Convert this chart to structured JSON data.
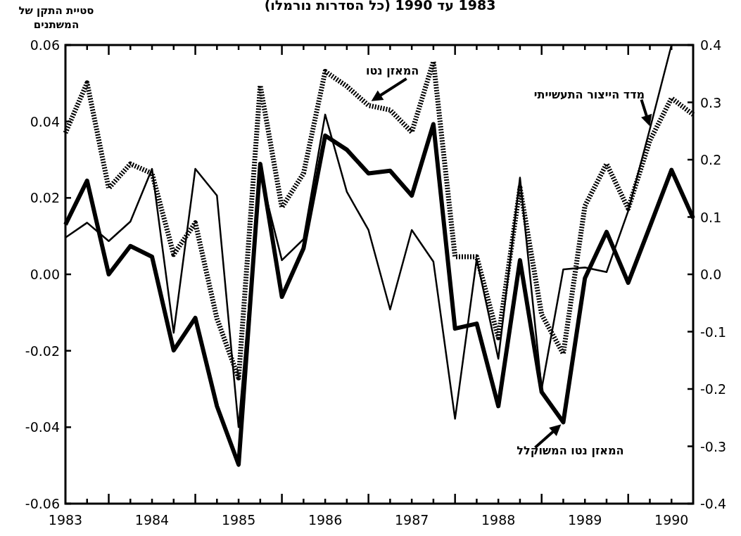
{
  "chart_data": {
    "type": "line",
    "title": "1983 עד 1990 (כל הסדרות נורמלו)",
    "ylabel": "סטיית התקן של המשתנים",
    "x": [
      1983.5,
      1983.75,
      1984,
      1984.25,
      1984.5,
      1984.75,
      1985,
      1985.25,
      1985.5,
      1985.75,
      1986,
      1986.25,
      1986.5,
      1986.75,
      1987,
      1987.25,
      1987.5,
      1987.75,
      1988,
      1988.25,
      1988.5,
      1988.75,
      1989,
      1989.25,
      1989.5,
      1989.75,
      1990,
      1990.25,
      1990.5,
      1990.75
    ],
    "series": [
      {
        "color": "#000000",
        "line_style": "solid",
        "values": [
          0.013,
          0.0245,
          0.0,
          0.0074,
          0.0046,
          -0.0199,
          -0.0114,
          -0.0345,
          -0.0498,
          0.0289,
          -0.0059,
          0.0068,
          0.0363,
          0.0326,
          0.0264,
          0.0271,
          0.0206,
          0.0393,
          -0.0142,
          -0.0129,
          -0.0345,
          0.0037,
          -0.0308,
          -0.0387,
          -0.001,
          0.0111,
          -0.0022,
          0.0125,
          0.0273,
          0.0147
        ]
      },
      {
        "color": "#000000",
        "line_style": "solid",
        "values": [
          0.0096,
          0.0135,
          0.0087,
          0.0138,
          0.0276,
          -0.0153,
          0.0276,
          0.0206,
          -0.04,
          0.0264,
          0.0037,
          0.0092,
          0.0418,
          0.0216,
          0.0116,
          -0.0092,
          0.0116,
          0.0033,
          -0.0378,
          0.004,
          -0.0221,
          0.0253,
          -0.03,
          0.0013,
          0.0018,
          0.0006,
          0.0166,
          0.038,
          0.06,
          null
        ]
      },
      {
        "color": "#000000",
        "line_style": "dotted",
        "values": [
          0.037,
          0.0501,
          0.0225,
          0.0289,
          0.0264,
          0.0052,
          0.0135,
          -0.0116,
          -0.0271,
          0.0494,
          0.0175,
          0.0264,
          0.0531,
          0.0492,
          0.0442,
          0.043,
          0.0372,
          0.0557,
          0.0046,
          0.0046,
          -0.0166,
          0.0227,
          -0.0105,
          -0.0208,
          0.0179,
          0.0289,
          0.0172,
          0.035,
          0.0461,
          0.0418
        ]
      }
    ],
    "xlim": [
      1983.5,
      1990.75
    ],
    "xticks": [
      {
        "value": 1983.5,
        "label": "1983"
      },
      {
        "value": 1984.5,
        "label": "1984"
      },
      {
        "value": 1985.5,
        "label": "1985"
      },
      {
        "value": 1986.5,
        "label": "1986"
      },
      {
        "value": 1987.5,
        "label": "1987"
      },
      {
        "value": 1988.5,
        "label": "1988"
      },
      {
        "value": 1989.5,
        "label": "1989"
      },
      {
        "value": 1990.5,
        "label": "1990"
      },
      {
        "value": 1983.75,
        "label": null
      },
      {
        "value": 1984,
        "label": null
      },
      {
        "value": 1984.25,
        "label": null
      },
      {
        "value": 1984.5,
        "label": null
      },
      {
        "value": 1984.75,
        "label": null
      },
      {
        "value": 1985,
        "label": null
      },
      {
        "value": 1985.25,
        "label": null
      },
      {
        "value": 1985.5,
        "label": null
      },
      {
        "value": 1985.75,
        "label": null
      },
      {
        "value": 1986,
        "label": null
      },
      {
        "value": 1986.25,
        "label": null
      },
      {
        "value": 1986.5,
        "label": null
      },
      {
        "value": 1986.75,
        "label": null
      },
      {
        "value": 1987,
        "label": null
      },
      {
        "value": 1987.25,
        "label": null
      },
      {
        "value": 1987.5,
        "label": null
      },
      {
        "value": 1987.75,
        "label": null
      },
      {
        "value": 1988,
        "label": null
      },
      {
        "value": 1988.25,
        "label": null
      },
      {
        "value": 1988.5,
        "label": null
      },
      {
        "value": 1988.75,
        "label": null
      },
      {
        "value": 1989,
        "label": null
      },
      {
        "value": 1989.25,
        "label": null
      },
      {
        "value": 1989.5,
        "label": null
      },
      {
        "value": 1989.75,
        "label": null
      },
      {
        "value": 1990,
        "label": null
      },
      {
        "value": 1990.25,
        "label": null
      },
      {
        "value": 1990.5,
        "label": null
      }
    ],
    "ylim": [
      -0.06,
      0.06
    ],
    "yticks": [
      -0.06,
      -0.04,
      -0.02,
      {
        "value": 0,
        "label": "0.00"
      },
      0.02,
      0.04,
      0.06
    ],
    "y2lim": [
      -0.4,
      0.4
    ],
    "y2ticks": [
      -0.4,
      -0.3,
      -0.2,
      -0.1,
      {
        "value": 0,
        "label": "0.0"
      },
      0.1,
      0.2,
      0.3,
      0.4
    ],
    "tick_labels": "xy",
    "annotations": [
      {
        "text": "המאזן נטו המשוקלל",
        "x": 1989.25,
        "y": -0.0387
      },
      {
        "text": "מדד הייצור התעשייתי",
        "x": 1990.25,
        "y": 0.038
      },
      {
        "text": "המאזן נטו",
        "x": 1987,
        "y": 0.0442
      }
    ]
  }
}
